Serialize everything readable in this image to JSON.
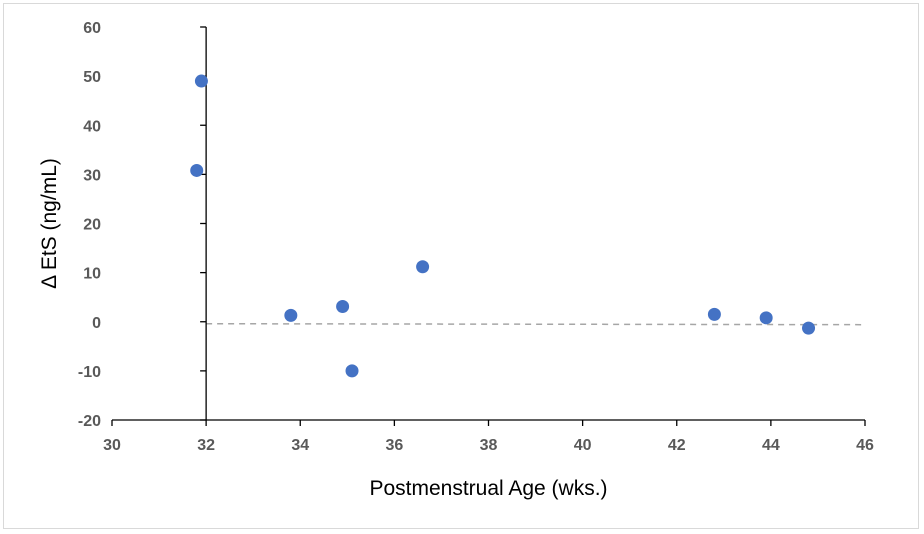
{
  "chart_data": {
    "type": "scatter",
    "title": "",
    "xlabel": "Postmenstrual Age (wks.)",
    "ylabel": "Δ EtS (ng/mL)",
    "xlim": [
      30,
      46
    ],
    "ylim": [
      -20,
      60
    ],
    "x_ticks": [
      "30",
      "32",
      "34",
      "36",
      "38",
      "40",
      "42",
      "44",
      "46"
    ],
    "y_ticks": [
      "60",
      "50",
      "40",
      "30",
      "20",
      "10",
      "0",
      "-10",
      "-20"
    ],
    "grid": false,
    "legend": "none",
    "marker_color": "#4472C4",
    "reference_line": {
      "style": "dashed",
      "color": "#a6a6a6",
      "y_start": -0.4,
      "y_end": -0.6
    },
    "points": [
      {
        "x": 31.8,
        "y": 30.8
      },
      {
        "x": 31.9,
        "y": 49.0
      },
      {
        "x": 33.8,
        "y": 1.3
      },
      {
        "x": 34.9,
        "y": 3.1
      },
      {
        "x": 35.1,
        "y": -10.0
      },
      {
        "x": 36.6,
        "y": 11.2
      },
      {
        "x": 42.8,
        "y": 1.5
      },
      {
        "x": 43.9,
        "y": 0.8
      },
      {
        "x": 44.8,
        "y": -1.3
      }
    ]
  }
}
